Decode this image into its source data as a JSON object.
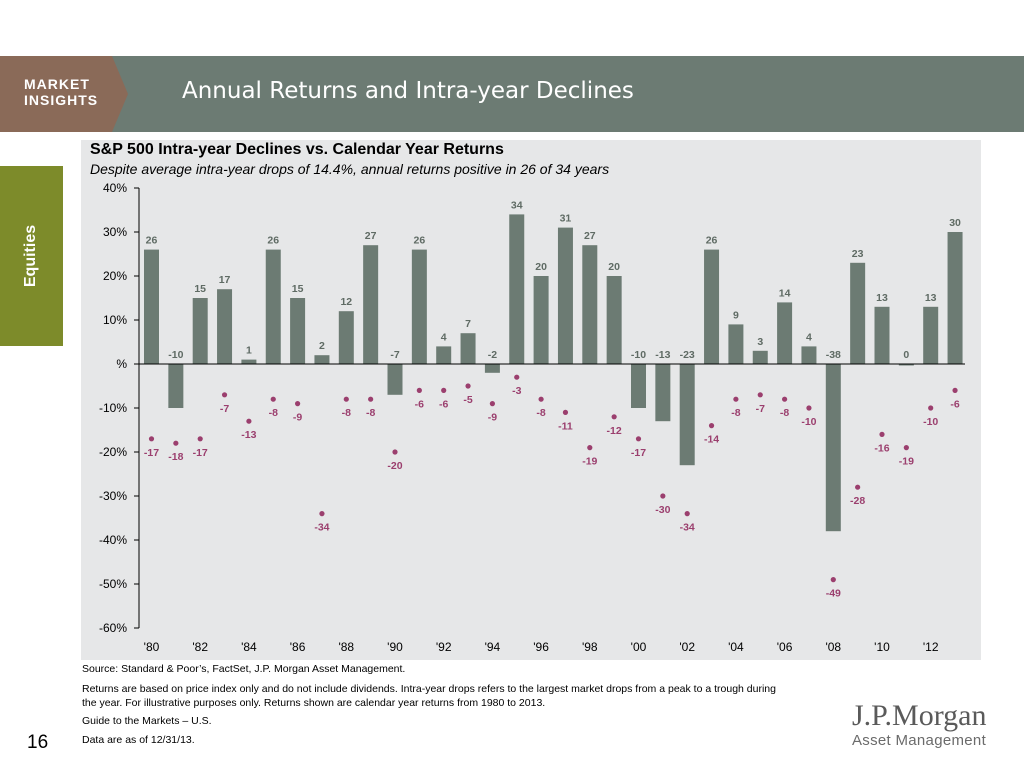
{
  "header": {
    "badge_line1": "MARKET",
    "badge_line2": "INSIGHTS",
    "title": "Annual Returns and Intra-year Declines"
  },
  "side_tab": "Equities",
  "chart_title": "S&P 500 Intra-year Declines vs. Calendar Year Returns",
  "chart_subtitle": "Despite average intra-year drops of 14.4%, annual returns positive in 26 of 34 years",
  "chart_data": {
    "type": "bar",
    "title": "S&P 500 Intra-year Declines vs. Calendar Year Returns",
    "subtitle": "Despite average intra-year drops of 14.4%, annual returns positive in 26 of 34 years",
    "ylim": [
      -60,
      40
    ],
    "y_ticks": [
      40,
      30,
      20,
      10,
      0,
      -10,
      -20,
      -30,
      -40,
      -50,
      -60
    ],
    "y_tick_labels": [
      "40%",
      "30%",
      "20%",
      "10%",
      "%",
      "-10%",
      "-20%",
      "-30%",
      "-40%",
      "-50%",
      "-60%"
    ],
    "categories": [
      1980,
      1981,
      1982,
      1983,
      1984,
      1985,
      1986,
      1987,
      1988,
      1989,
      1990,
      1991,
      1992,
      1993,
      1994,
      1995,
      1996,
      1997,
      1998,
      1999,
      2000,
      2001,
      2002,
      2003,
      2004,
      2005,
      2006,
      2007,
      2008,
      2009,
      2010,
      2011,
      2012,
      2013
    ],
    "x_tick_labels": [
      "'80",
      "'82",
      "'84",
      "'86",
      "'88",
      "'90",
      "'92",
      "'94",
      "'96",
      "'98",
      "'00",
      "'02",
      "'04",
      "'06",
      "'08",
      "'10",
      "'12"
    ],
    "series": [
      {
        "type": "bar",
        "color": "#6c7b73",
        "values": [
          26,
          -10,
          15,
          17,
          1,
          26,
          15,
          2,
          12,
          27,
          -7,
          26,
          4,
          7,
          -2,
          34,
          20,
          31,
          27,
          20,
          -10,
          -13,
          -23,
          26,
          9,
          3,
          14,
          4,
          -38,
          23,
          13,
          0,
          13,
          30
        ]
      },
      {
        "type": "scatter",
        "color": "#9b3f6e",
        "values": [
          -17,
          -18,
          -17,
          -7,
          -13,
          -8,
          -9,
          -34,
          -8,
          -8,
          -20,
          -6,
          -6,
          -5,
          -9,
          -3,
          -8,
          -11,
          -19,
          -12,
          -17,
          -30,
          -34,
          -14,
          -8,
          -7,
          -8,
          -10,
          -49,
          -28,
          -16,
          -19,
          -10,
          -6
        ]
      }
    ],
    "grid": false
  },
  "footnotes": {
    "source": "Source: Standard & Poor’s, FactSet, J.P. Morgan Asset Management.",
    "returns_line1": "Returns are based on price index only and do not include dividends. Intra-year drops refers to the largest market drops from a peak to a trough during",
    "returns_line2": "the year. For illustrative purposes only. Returns shown are calendar year returns from 1980 to 2013.",
    "guide": "Guide to the Markets – U.S.",
    "data_as_of": " Data are as of 12/31/13."
  },
  "page_number": "16",
  "logo": {
    "line1": "J.P.Morgan",
    "line2": "Asset Management"
  }
}
